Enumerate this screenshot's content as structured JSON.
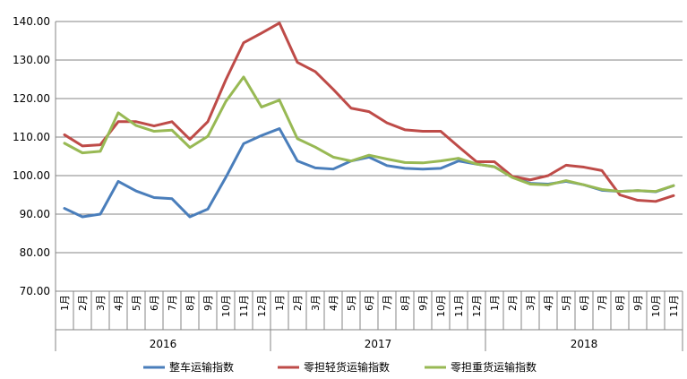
{
  "chart_data": {
    "type": "line",
    "title": "",
    "xlabel": "",
    "ylabel": "",
    "ylim": [
      70,
      140
    ],
    "yticks": [
      "70.00",
      "80.00",
      "90.00",
      "100.00",
      "110.00",
      "120.00",
      "130.00",
      "140.00"
    ],
    "grid": true,
    "legend": "bottom",
    "categories": [
      "1月",
      "2月",
      "3月",
      "4月",
      "5月",
      "6月",
      "7月",
      "8月",
      "9月",
      "10月",
      "11月",
      "12月",
      "1月",
      "2月",
      "3月",
      "4月",
      "5月",
      "6月",
      "7月",
      "8月",
      "9月",
      "10月",
      "11月",
      "12月",
      "1月",
      "2月",
      "3月",
      "4月",
      "5月",
      "6月",
      "7月",
      "8月",
      "9月",
      "10月",
      "11月"
    ],
    "years": [
      {
        "label": "2016",
        "start": 0,
        "end": 11
      },
      {
        "label": "2017",
        "start": 12,
        "end": 23
      },
      {
        "label": "2018",
        "start": 24,
        "end": 34
      }
    ],
    "series": [
      {
        "name": "整车运输指数",
        "color": "#4a7ebb",
        "values": [
          91.5,
          89.3,
          90.0,
          98.5,
          96.0,
          94.3,
          94.0,
          89.3,
          91.3,
          99.5,
          108.3,
          110.4,
          112.2,
          103.8,
          102.0,
          101.7,
          103.8,
          104.8,
          102.6,
          101.9,
          101.7,
          101.9,
          103.8,
          103.0,
          102.3,
          99.6,
          98.0,
          97.8,
          98.5,
          97.6,
          96.2,
          95.9,
          96.1,
          95.8,
          97.4
        ]
      },
      {
        "name": "零担轻货运输指数",
        "color": "#be4b48",
        "values": [
          110.6,
          107.7,
          108.0,
          114.0,
          114.0,
          112.9,
          114.0,
          109.4,
          114.0,
          124.8,
          134.5,
          137.0,
          139.6,
          129.4,
          127.0,
          122.4,
          117.5,
          116.6,
          113.7,
          111.9,
          111.5,
          111.5,
          107.5,
          103.6,
          103.6,
          99.8,
          98.9,
          100.0,
          102.7,
          102.2,
          101.3,
          95.0,
          93.6,
          93.3,
          94.8
        ]
      },
      {
        "name": "零担重货运输指数",
        "color": "#98b954",
        "values": [
          108.4,
          105.9,
          106.3,
          116.3,
          113.0,
          111.5,
          111.8,
          107.3,
          110.2,
          119.2,
          125.6,
          117.8,
          119.6,
          109.6,
          107.4,
          104.8,
          103.8,
          105.3,
          104.3,
          103.4,
          103.3,
          103.8,
          104.5,
          103.0,
          102.3,
          99.5,
          97.8,
          97.6,
          98.7,
          97.6,
          96.4,
          95.9,
          96.1,
          95.9,
          97.4
        ]
      }
    ]
  }
}
